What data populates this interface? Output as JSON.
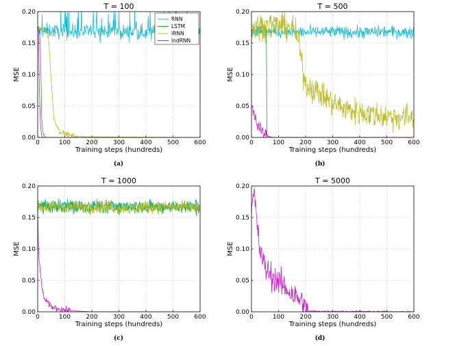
{
  "colors": {
    "RNN": "#17BECF",
    "LSTM": "#2CA02C",
    "IRNN": "#BCBD22",
    "IndRNN": "#C71FC7",
    "grid": "#b0b0b0"
  },
  "legend": [
    "RNN",
    "LSTM",
    "IRNN",
    "IndRNN"
  ],
  "chart_data": [
    {
      "type": "line",
      "panel": "a",
      "title": "T = 100",
      "caption": "(a)",
      "xlabel": "Training steps (hundreds)",
      "ylabel": "MSE",
      "xlim": [
        0,
        600
      ],
      "ylim": [
        0,
        0.2
      ],
      "xticks": [
        "0",
        "100",
        "200",
        "300",
        "400",
        "500",
        "600"
      ],
      "yticks": [
        "0.00",
        "0.05",
        "0.10",
        "0.15",
        "0.20"
      ],
      "grid": true,
      "legend_position": "top-right",
      "series": [
        {
          "name": "RNN",
          "points": [
            [
              0,
              0.168
            ],
            [
              50,
              0.17
            ],
            [
              100,
              0.167
            ],
            [
              150,
              0.168
            ],
            [
              200,
              0.169
            ],
            [
              300,
              0.168
            ],
            [
              400,
              0.167
            ],
            [
              500,
              0.168
            ],
            [
              600,
              0.168
            ]
          ],
          "noise": 0.012,
          "spike_prob": 0.08
        },
        {
          "name": "LSTM",
          "points": [
            [
              0,
              0.172
            ],
            [
              5,
              0.175
            ],
            [
              10,
              0.15
            ],
            [
              15,
              0.03
            ],
            [
              20,
              0.005
            ],
            [
              30,
              0.0
            ],
            [
              600,
              0.0
            ]
          ],
          "noise": 0.002
        },
        {
          "name": "IRNN",
          "points": [
            [
              0,
              0.17
            ],
            [
              20,
              0.175
            ],
            [
              40,
              0.16
            ],
            [
              50,
              0.09
            ],
            [
              60,
              0.03
            ],
            [
              80,
              0.01
            ],
            [
              120,
              0.003
            ],
            [
              180,
              0.001
            ],
            [
              600,
              0.0
            ]
          ],
          "noise": 0.004
        },
        {
          "name": "IndRNN",
          "points": [
            [
              0,
              0.175
            ],
            [
              3,
              0.17
            ],
            [
              6,
              0.08
            ],
            [
              10,
              0.02
            ],
            [
              15,
              0.003
            ],
            [
              20,
              0.0
            ],
            [
              600,
              0.0
            ]
          ],
          "noise": 0.001
        }
      ]
    },
    {
      "type": "line",
      "panel": "b",
      "title": "T = 500",
      "caption": "(b)",
      "xlabel": "Training steps (hundreds)",
      "ylabel": "MSE",
      "xlim": [
        0,
        600
      ],
      "ylim": [
        0,
        0.2
      ],
      "xticks": [
        "0",
        "100",
        "200",
        "300",
        "400",
        "500",
        "600"
      ],
      "yticks": [
        "0.00",
        "0.05",
        "0.10",
        "0.15",
        "0.20"
      ],
      "grid": true,
      "series": [
        {
          "name": "RNN",
          "points": [
            [
              0,
              0.168
            ],
            [
              100,
              0.168
            ],
            [
              200,
              0.167
            ],
            [
              300,
              0.168
            ],
            [
              400,
              0.167
            ],
            [
              500,
              0.168
            ],
            [
              600,
              0.167
            ]
          ],
          "noise": 0.01
        },
        {
          "name": "LSTM",
          "points": [
            [
              0,
              0.172
            ],
            [
              50,
              0.171
            ],
            [
              55,
              0.17
            ],
            [
              56,
              0.08
            ],
            [
              57,
              0.0
            ],
            [
              600,
              0.0
            ]
          ],
          "noise": 0.008
        },
        {
          "name": "IRNN",
          "points": [
            [
              0,
              0.175
            ],
            [
              80,
              0.18
            ],
            [
              150,
              0.175
            ],
            [
              170,
              0.16
            ],
            [
              185,
              0.12
            ],
            [
              200,
              0.085
            ],
            [
              250,
              0.07
            ],
            [
              300,
              0.055
            ],
            [
              350,
              0.045
            ],
            [
              400,
              0.04
            ],
            [
              500,
              0.033
            ],
            [
              600,
              0.032
            ]
          ],
          "noise": 0.022
        },
        {
          "name": "IndRNN",
          "points": [
            [
              0,
              0.05
            ],
            [
              10,
              0.04
            ],
            [
              20,
              0.02
            ],
            [
              40,
              0.008
            ],
            [
              60,
              0.002
            ],
            [
              80,
              0.0
            ],
            [
              600,
              0.0
            ]
          ],
          "noise": 0.01
        }
      ]
    },
    {
      "type": "line",
      "panel": "c",
      "title": "T = 1000",
      "caption": "(c)",
      "xlabel": "Training steps (hundreds)",
      "ylabel": "MSE",
      "xlim": [
        0,
        600
      ],
      "ylim": [
        0,
        0.2
      ],
      "xticks": [
        "0",
        "100",
        "200",
        "300",
        "400",
        "500",
        "600"
      ],
      "yticks": [
        "0.00",
        "0.05",
        "0.10",
        "0.15",
        "0.20"
      ],
      "grid": true,
      "series": [
        {
          "name": "RNN",
          "points": [
            [
              0,
              0.168
            ],
            [
              100,
              0.17
            ],
            [
              200,
              0.168
            ],
            [
              300,
              0.168
            ],
            [
              400,
              0.168
            ],
            [
              500,
              0.168
            ],
            [
              600,
              0.168
            ]
          ],
          "noise": 0.01
        },
        {
          "name": "LSTM",
          "points": [
            [
              0,
              0.167
            ],
            [
              100,
              0.167
            ],
            [
              200,
              0.166
            ],
            [
              300,
              0.167
            ],
            [
              400,
              0.166
            ],
            [
              500,
              0.167
            ],
            [
              600,
              0.166
            ]
          ],
          "noise": 0.011
        },
        {
          "name": "IRNN",
          "points": [
            [
              0,
              0.166
            ],
            [
              100,
              0.167
            ],
            [
              200,
              0.167
            ],
            [
              300,
              0.166
            ],
            [
              400,
              0.167
            ],
            [
              500,
              0.167
            ],
            [
              600,
              0.166
            ]
          ],
          "noise": 0.01
        },
        {
          "name": "IndRNN",
          "points": [
            [
              0,
              0.16
            ],
            [
              3,
              0.1
            ],
            [
              8,
              0.07
            ],
            [
              15,
              0.04
            ],
            [
              25,
              0.02
            ],
            [
              50,
              0.008
            ],
            [
              100,
              0.003
            ],
            [
              150,
              0.001
            ],
            [
              200,
              0.0
            ],
            [
              600,
              0.0
            ]
          ],
          "noise": 0.005
        }
      ]
    },
    {
      "type": "line",
      "panel": "d",
      "title": "T = 5000",
      "caption": "(d)",
      "xlabel": "Training steps (hundreds)",
      "ylabel": "MSE",
      "xlim": [
        0,
        600
      ],
      "ylim": [
        0,
        0.2
      ],
      "xticks": [
        "0",
        "100",
        "200",
        "300",
        "400",
        "500",
        "600"
      ],
      "yticks": [
        "0.00",
        "0.05",
        "0.10",
        "0.15",
        "0.20"
      ],
      "grid": true,
      "series": [
        {
          "name": "IndRNN",
          "points": [
            [
              0,
              0.16
            ],
            [
              10,
              0.19
            ],
            [
              20,
              0.14
            ],
            [
              30,
              0.1
            ],
            [
              50,
              0.07
            ],
            [
              80,
              0.055
            ],
            [
              120,
              0.04
            ],
            [
              160,
              0.025
            ],
            [
              190,
              0.015
            ],
            [
              200,
              0.005
            ],
            [
              210,
              0.001
            ],
            [
              600,
              0.0
            ]
          ],
          "noise": 0.022
        }
      ]
    }
  ]
}
